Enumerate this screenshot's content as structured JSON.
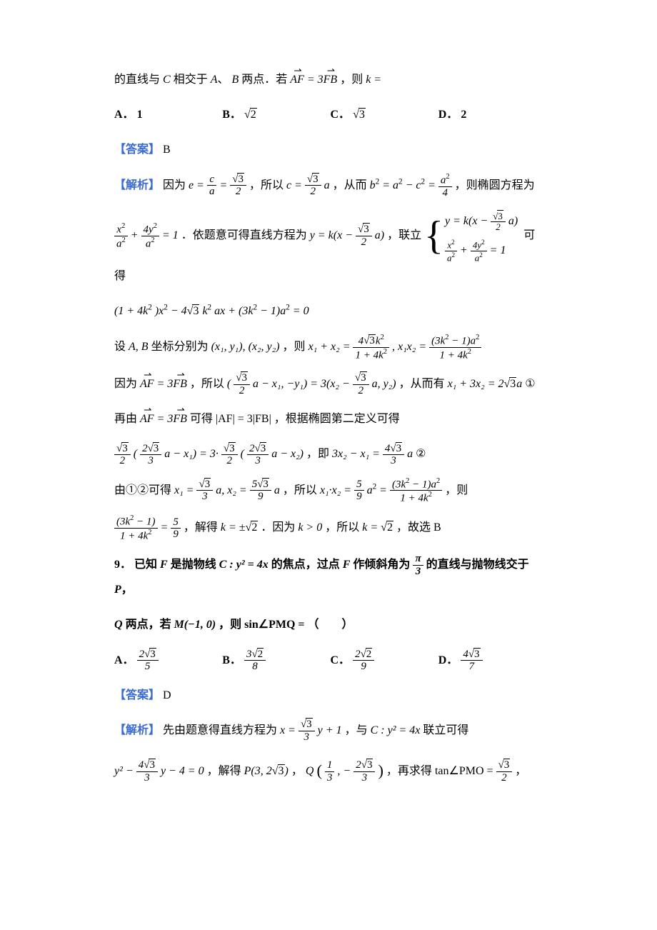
{
  "colors": {
    "text": "#000000",
    "accent": "#3b6bd6",
    "bg": "#ffffff"
  },
  "p8": {
    "stem_prefix": "的直线与",
    "stem_mid1": " 相交于",
    "stem_mid2": " 两点．若 ",
    "stem_tail": "，则",
    "C": "C",
    "A": "A",
    "B": "B",
    "k_eq": "k =",
    "AF": "AF",
    "eq3": " = 3",
    "FB": "FB",
    "choices": {
      "A_label": "A．",
      "A_val": "1",
      "B_label": "B．",
      "B_val": "2",
      "C_label": "C．",
      "C_val": "3",
      "D_label": "D．",
      "D_val": "2"
    },
    "answer_label": "【答案】",
    "answer_val": "B",
    "sol_label": "【解析】",
    "sol1_a": "因为",
    "sol1_b": "，所以",
    "sol1_c": "，从而",
    "sol1_d": "，则椭圆方程为",
    "e_eq_c_over_a": "e =",
    "c": "c",
    "a": "a",
    "rt3": "3",
    "two": "2",
    "b2_eq": "b",
    "a2mc2": " = a",
    "minus": " − c",
    "eq_a2_4": " = ",
    "four": "4",
    "c_eq": "c = ",
    "sol2_a": "．依题意可得直线方程为",
    "sol2_b": "，联立",
    "sol2_c": "可得",
    "ellipse_lhs": "x",
    "plus": " + ",
    "y": "4y",
    "eq1": " = 1",
    "line_eq": "y = k(x − ",
    "line_tail": "a)",
    "quad": "(1 + 4k",
    "quad2": ")x",
    "quad3": " − 4",
    "quad4": "k",
    "quad5": "ax + (3k",
    "quad6": " − 1)a",
    "quad7": " = 0",
    "sol3_a": "设",
    "sol3_b": " 坐标分别为",
    "sol3_c": "，则",
    "AB": "A, B",
    "pts": "(x₁, y₁), (x₂, y₂)",
    "sum_x": "x₁ + x₂ = ",
    "prod_x": ", x₁x₂ = ",
    "num_sum": "4",
    "den_common": "1 + 4k",
    "num_prod": "(3k",
    "num_prod_tail": " − 1)a",
    "sol4_a": "因为",
    "sol4_b": "，所以",
    "sol4_c": "，从而有",
    "sol4_d": " ①",
    "vec_eq1": "(",
    "vec_eq1b": "a − x₁, −y₁) = 3(x₂ − ",
    "vec_eq1c": "a, y₂)",
    "x1_3x2": "x₁ + 3x₂ = 2",
    "x1_3x2_tail": "a",
    "sol5_a": "再由",
    "sol5_b": " 可得",
    "sol5_c": "，根据椭圆第二定义可得",
    "af_3fb_mag": "|AF| = 3|FB|",
    "sol6_a": "，即",
    "sol6_b": " ②",
    "def_lhs": "(",
    "two_rt3_3_num": "2",
    "def_mid": "a − x₁) = 3·",
    "def_mid2": "a − x₂)",
    "res6": "3x₂ − x₁ = ",
    "four_rt3_3": "4",
    "three_den": "3",
    "sol7_a": "由①②可得",
    "sol7_b": "，所以",
    "sol7_c": "，则",
    "x1_val_num": "3",
    "x2_val_num": "5",
    "nine": "9",
    "x1_eq": "x₁ = ",
    "x2_eq": "a, x₂ = ",
    "tail_a": "a",
    "prod_eq": "x₁·x₂ = ",
    "five_ninths_a2": "5",
    "a2": "a",
    "eq_frac": " = ",
    "sol8_a": "，解得",
    "sol8_b": "．因为",
    "sol8_c": "，所以",
    "sol8_d": "，故选 B",
    "frac_simpl_num": "(3k",
    "frac_simpl_tail": " − 1)",
    "eq_5_9": " = ",
    "k_pm": "k = ±",
    "k_gt0": "k > 0",
    "k_val": "k = "
  },
  "p9": {
    "num": "9．",
    "stem_a": "已知",
    "F": "F",
    "stem_b": " 是抛物线",
    "C_eq": "C : y² = 4x",
    "stem_c": " 的焦点，过点",
    "stem_d": " 作倾斜角为",
    "pi_3_num": "π",
    "pi_3_den": "3",
    "stem_e": " 的直线与抛物线交于",
    "P": "P",
    "comma": "，",
    "Q": "Q",
    "stem_f": " 两点，若",
    "M": "M(−1, 0)",
    "stem_g": "，则",
    "sin_pmq": "sin∠PMQ =",
    "paren": "（　　）",
    "choices": {
      "A_label": "A．",
      "A_num": "2",
      "A_rt": "3",
      "A_den": "5",
      "B_label": "B．",
      "B_num": "3",
      "B_rt": "2",
      "B_den": "8",
      "C_label": "C．",
      "C_num": "2",
      "C_rt": "2",
      "C_den": "9",
      "D_label": "D．",
      "D_num": "4",
      "D_rt": "3",
      "D_den": "7"
    },
    "answer_label": "【答案】",
    "answer_val": "D",
    "sol_label": "【解析】",
    "sol1_a": "先由题意得直线方程为",
    "sol1_b": "，与",
    "sol1_c": " 联立可得",
    "x_eq": "x = ",
    "rt3_3_den": "3",
    "y_plus1": "y + 1",
    "C_eq2": "C : y² = 4x",
    "sol2_a": "，解得",
    "sol2_b": "，再求得",
    "quad_y": "y² − ",
    "four_rt3_3_num": "4",
    "quad_y_tail": "y − 4 = 0",
    "P_val": "P(3, 2",
    "P_tail": ")",
    "Q_pre": "Q",
    "Q_x": "1",
    "Q_x_den": "3",
    "Q_y_num": "2",
    "Q_y_den": "3",
    "Q_neg": ", −",
    "tan_pmo": "tan∠PMO = ",
    "tan_val_den": "2"
  }
}
